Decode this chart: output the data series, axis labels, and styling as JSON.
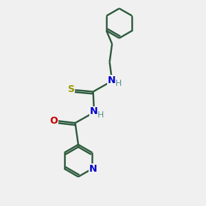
{
  "bg_color": "#f0f0f0",
  "bond_color": "#2d5a3d",
  "N_color": "#0000cc",
  "O_color": "#cc0000",
  "S_color": "#999900",
  "line_width": 1.8,
  "font_size": 10,
  "H_color": "#5a9090",
  "figsize": [
    3.0,
    3.0
  ],
  "dpi": 100,
  "xlim": [
    0,
    10
  ],
  "ylim": [
    0,
    10
  ]
}
